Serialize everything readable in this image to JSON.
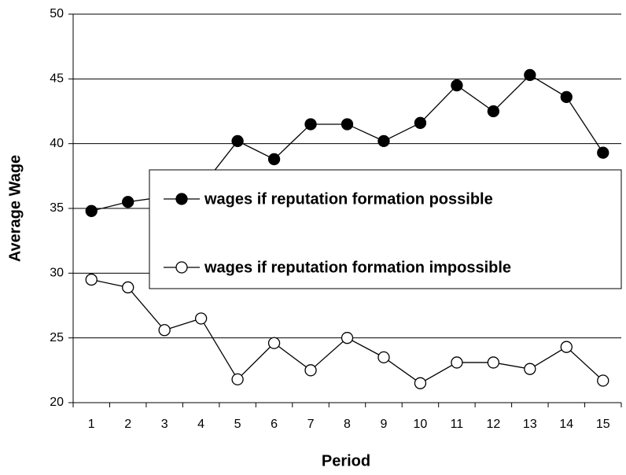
{
  "chart_data": {
    "type": "line",
    "y_label": "Average Wage",
    "x_label": "Period",
    "categories": [
      "1",
      "2",
      "3",
      "4",
      "5",
      "6",
      "7",
      "8",
      "9",
      "10",
      "11",
      "12",
      "13",
      "14",
      "15"
    ],
    "series": [
      {
        "name": "wages if reputation formation possible",
        "color": "#000000",
        "marker_fill": "#000000",
        "values": [
          34.8,
          35.5,
          35.9,
          36.6,
          40.2,
          38.8,
          41.5,
          41.5,
          40.2,
          41.6,
          44.5,
          42.5,
          45.3,
          43.6,
          39.3
        ]
      },
      {
        "name": "wages if reputation formation impossible",
        "color": "#000000",
        "marker_fill": "#ffffff",
        "values": [
          29.5,
          28.9,
          25.6,
          26.5,
          21.8,
          24.6,
          22.5,
          25.0,
          23.5,
          21.5,
          23.1,
          23.1,
          22.6,
          24.3,
          21.7
        ]
      }
    ],
    "ylim": [
      20,
      50
    ],
    "yticks": [
      20,
      25,
      30,
      35,
      40,
      45,
      50
    ],
    "grid": true
  }
}
